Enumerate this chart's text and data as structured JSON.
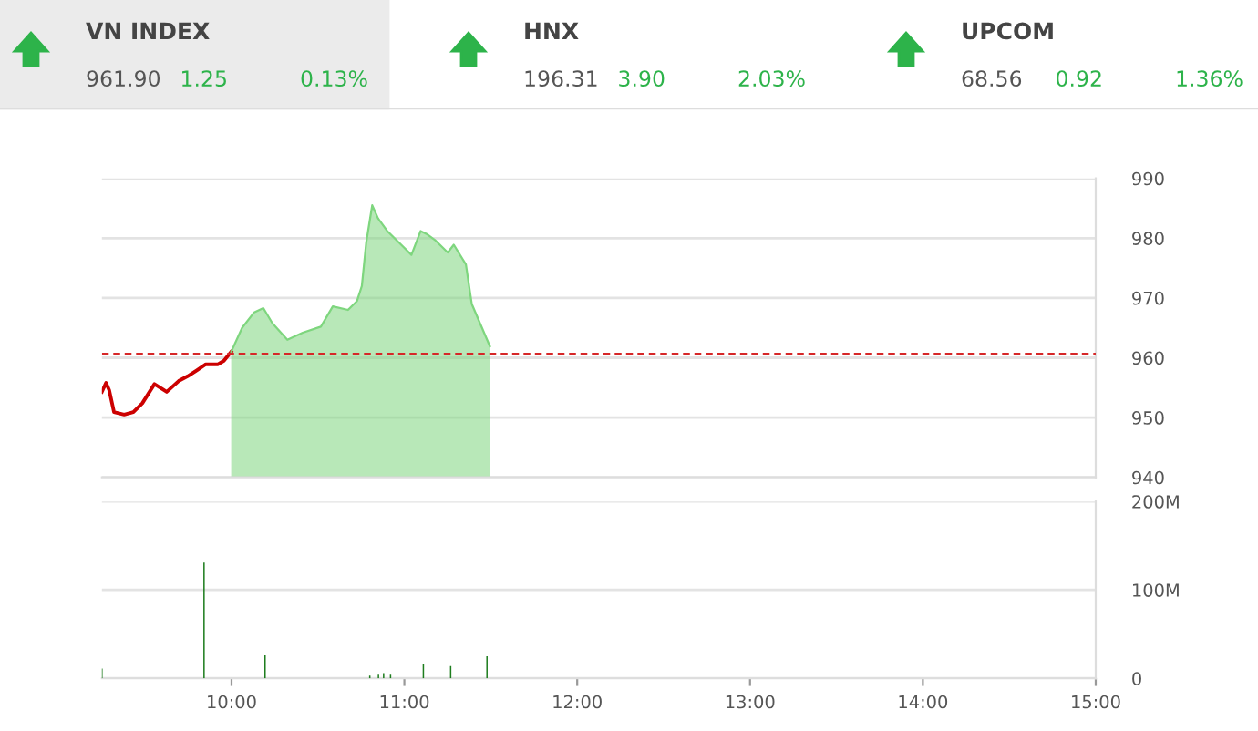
{
  "chart_data": [
    {
      "type": "other",
      "annotations": [
        "VN INDEX",
        "961.90",
        "1.25",
        "0.13%",
        "HNX",
        "196.31",
        "3.90",
        "2.03%",
        "UPCOM",
        "68.56",
        "0.92",
        "1.36%"
      ]
    },
    {
      "type": "area",
      "xlim": [
        9.25,
        15
      ],
      "ylim": [
        940,
        990
      ],
      "yticks": [
        940,
        950,
        960,
        970,
        980,
        990
      ],
      "grid": "y",
      "tick_labels": "y",
      "marker": "none",
      "ref_lines": [
        {
          "axis": "y",
          "value": 960.65,
          "color": "#d62728",
          "line_style": "dashed"
        }
      ],
      "series": [
        {
          "type": "line",
          "color": "#cc0000",
          "x": [
            9.25,
            9.274,
            9.292,
            9.32,
            9.379,
            9.432,
            9.484,
            9.554,
            9.625,
            9.694,
            9.746,
            9.799,
            9.851,
            9.922,
            9.956,
            9.998
          ],
          "values": [
            954.3,
            955.8,
            954.6,
            950.9,
            950.5,
            950.9,
            952.4,
            955.6,
            954.3,
            956.1,
            956.9,
            957.9,
            958.9,
            958.9,
            959.5,
            961.0
          ]
        },
        {
          "type": "area",
          "color": "#7ed67e",
          "x": [
            9.998,
            10.061,
            10.131,
            10.184,
            10.236,
            10.323,
            10.412,
            10.517,
            10.586,
            10.674,
            10.726,
            10.754,
            10.779,
            10.814,
            10.848,
            10.901,
            10.971,
            11.041,
            11.094,
            11.129,
            11.181,
            11.251,
            11.286,
            11.356,
            11.39,
            11.495
          ],
          "values": [
            961.0,
            965.0,
            967.6,
            968.3,
            965.8,
            963.0,
            964.2,
            965.2,
            968.6,
            968.0,
            969.5,
            972.0,
            979.2,
            985.5,
            983.3,
            981.2,
            979.2,
            977.2,
            981.2,
            980.7,
            979.6,
            977.6,
            978.9,
            975.6,
            969.0,
            961.9
          ]
        }
      ]
    },
    {
      "type": "bar",
      "xlim": [
        9.25,
        15
      ],
      "ylim": [
        0,
        200
      ],
      "yticks": [
        0,
        {
          "value": 100,
          "label": "100M"
        },
        {
          "value": 200,
          "label": "200M"
        }
      ],
      "xticks": [
        {
          "value": 10,
          "label": "10:00"
        },
        {
          "value": 11,
          "label": "11:00"
        },
        {
          "value": 12,
          "label": "12:00"
        },
        {
          "value": 13,
          "label": "13:00"
        },
        {
          "value": 14,
          "label": "14:00"
        },
        {
          "value": 15,
          "label": "15:00"
        }
      ],
      "grid": "y",
      "series": [
        {
          "color": "#1e7d1e",
          "x": [
            9.25,
            9.841,
            10.194,
            10.8,
            10.85,
            10.88,
            10.92,
            11.11,
            11.268,
            11.478
          ],
          "values": [
            11,
            131,
            26,
            3,
            4,
            6,
            4,
            16,
            14,
            25
          ]
        }
      ]
    }
  ]
}
